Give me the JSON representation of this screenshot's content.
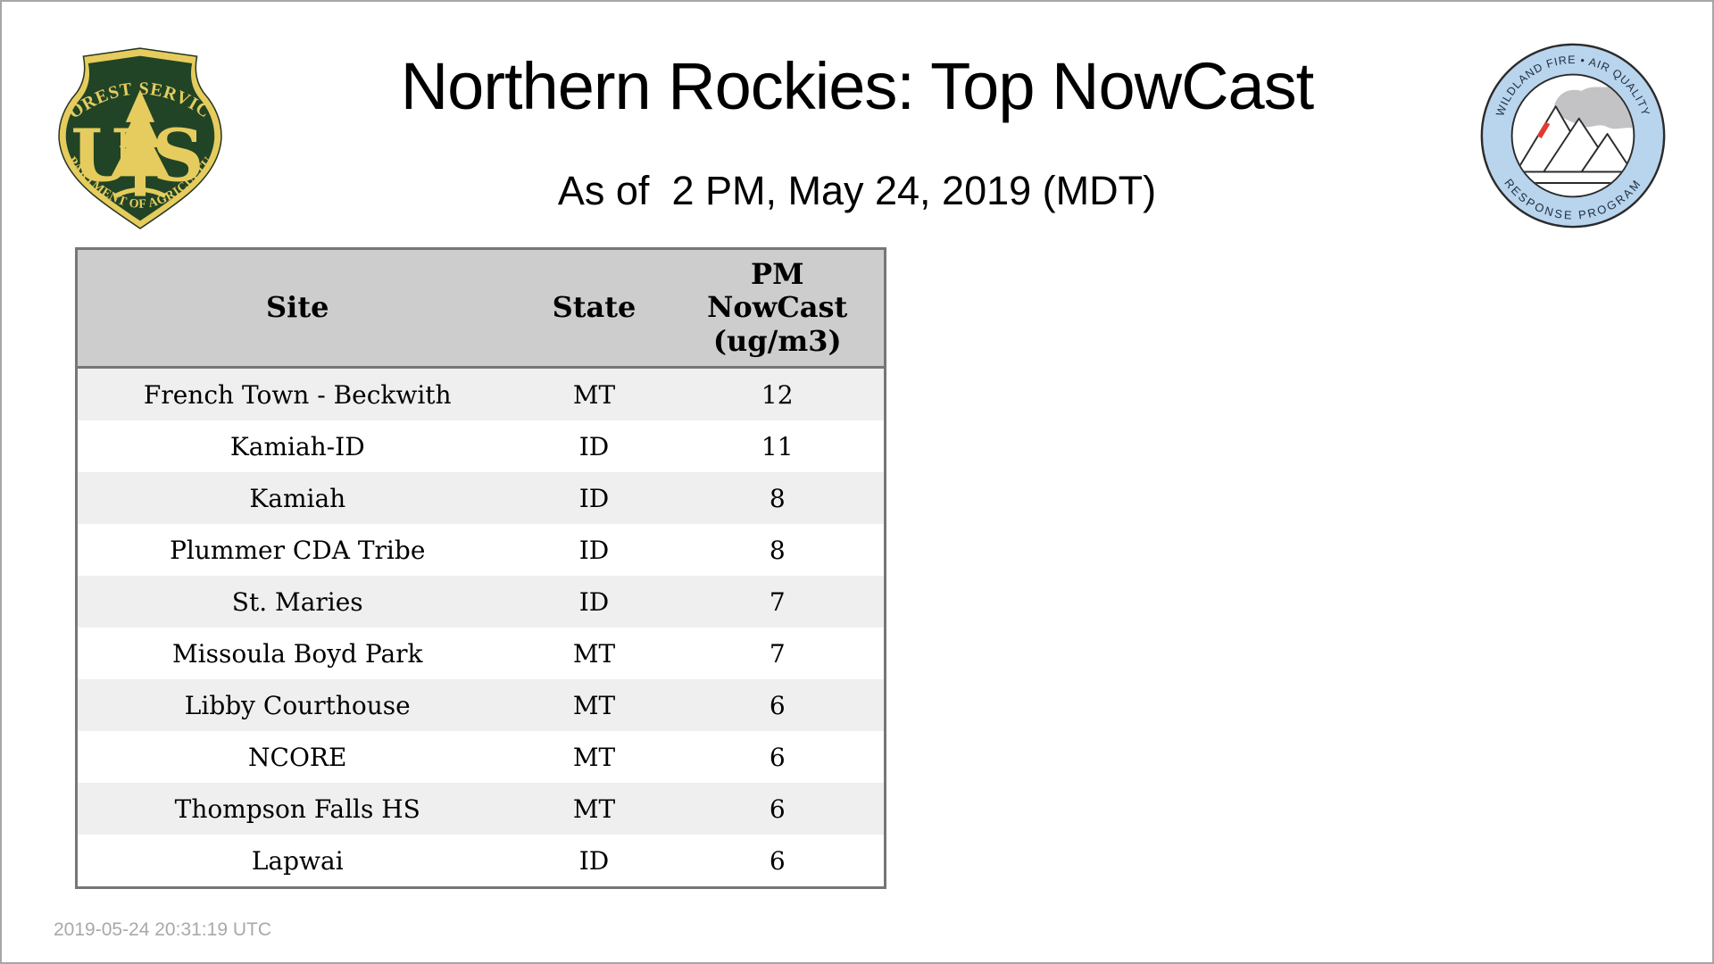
{
  "page": {
    "title": "Northern Rockies: Top NowCast",
    "subtitle": "As of  2 PM, May 24, 2019 (MDT)",
    "generated_utc": "2019-05-24 20:31:19 UTC"
  },
  "logos": {
    "forest_service": {
      "arc_top": "FOREST SERVICE",
      "letter_u": "U",
      "letter_s": "S",
      "arc_bottom": "DEPARTMENT OF AGRICULTURE",
      "green": "#214426",
      "gold": "#e6cc5e"
    },
    "wfaqrp": {
      "arc_top": "WILDLAND FIRE • AIR QUALITY",
      "arc_bottom": "RESPONSE PROGRAM",
      "ring_blue": "#b9d4ed",
      "text_navy": "#1d2f42",
      "smoke_gray": "#c3c3c6",
      "fire_red": "#e23a30"
    }
  },
  "table": {
    "columns": [
      {
        "label": "Site"
      },
      {
        "label": "State"
      },
      {
        "label": "PM\nNowCast\n(ug/m3)"
      }
    ]
  },
  "chart_data": {
    "type": "table",
    "columns": [
      "Site",
      "State",
      "PM NowCast (ug/m3)"
    ],
    "rows": [
      [
        "French Town - Beckwith",
        "MT",
        "12"
      ],
      [
        "Kamiah-ID",
        "ID",
        "11"
      ],
      [
        "Kamiah",
        "ID",
        "8"
      ],
      [
        "Plummer CDA Tribe",
        "ID",
        "8"
      ],
      [
        "St. Maries",
        "ID",
        "7"
      ],
      [
        "Missoula Boyd Park",
        "MT",
        "7"
      ],
      [
        "Libby Courthouse",
        "MT",
        "6"
      ],
      [
        "NCORE",
        "MT",
        "6"
      ],
      [
        "Thompson Falls HS",
        "MT",
        "6"
      ],
      [
        "Lapwai",
        "ID",
        "6"
      ]
    ]
  },
  "colors": {
    "header_bg": "#cdcdcd",
    "row_stripe": "#efefef",
    "table_border": "#767676",
    "timestamp_gray": "#a9a9a9"
  }
}
